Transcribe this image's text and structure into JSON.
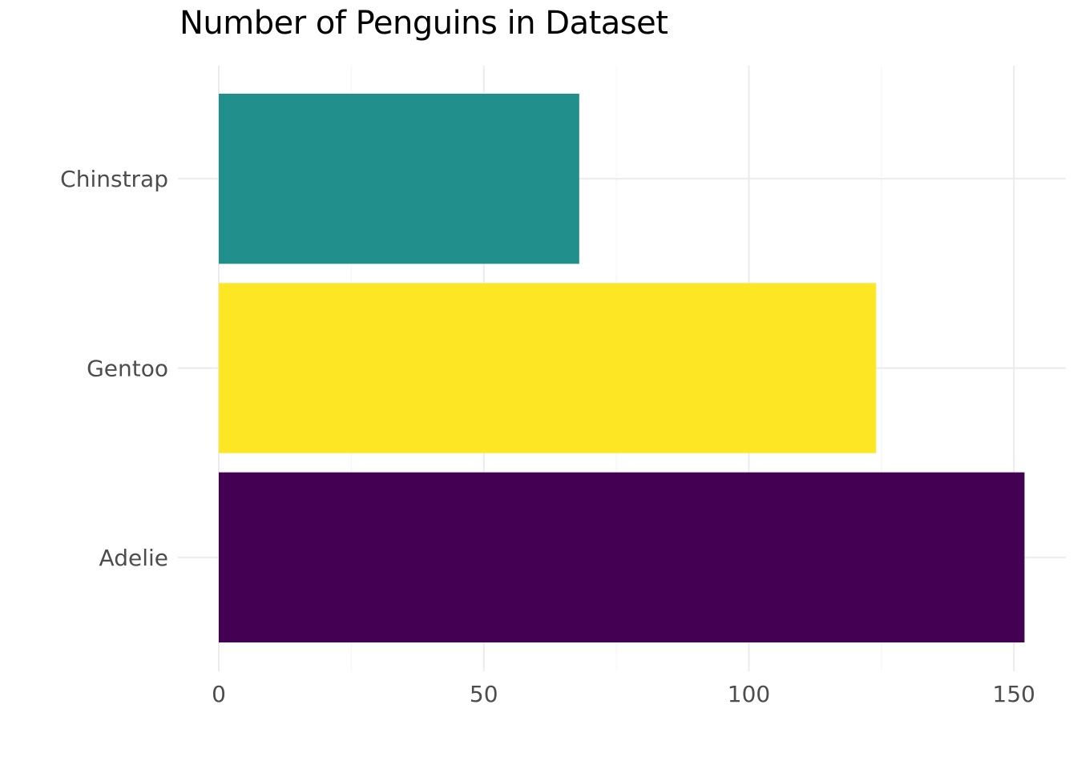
{
  "chart_data": {
    "type": "bar",
    "orientation": "horizontal",
    "title": "Number of Penguins in Dataset",
    "xlabel": "",
    "ylabel": "",
    "categories": [
      "Adelie",
      "Gentoo",
      "Chinstrap"
    ],
    "values": [
      152,
      124,
      68
    ],
    "colors": [
      "#440154",
      "#FDE725",
      "#21908C"
    ],
    "xlim": [
      0,
      160
    ],
    "x_ticks": [
      0,
      50,
      100,
      150
    ],
    "grid": true,
    "legend": "none"
  }
}
